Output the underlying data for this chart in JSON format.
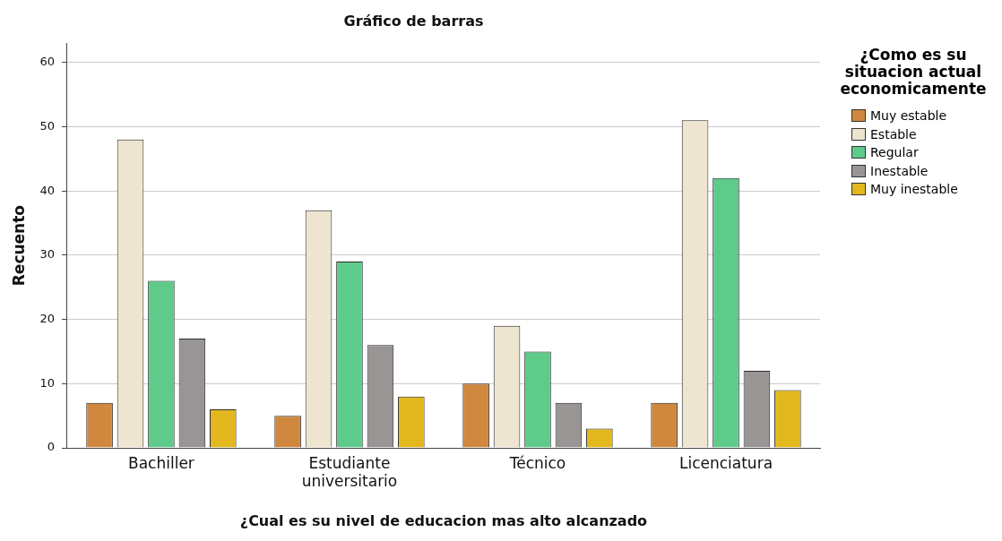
{
  "chart_data": {
    "type": "bar",
    "title": "Gráfico de barras",
    "xlabel": "¿Cual es su nivel de educacion mas alto alcanzado",
    "ylabel": "Recuento",
    "legend_title": "¿Como es su situacion actual economicamente",
    "categories": [
      "Bachiller",
      "Estudiante universitario",
      "Técnico",
      "Licenciatura"
    ],
    "series": [
      {
        "name": "Muy estable",
        "color": "#d0883f",
        "values": [
          7,
          5,
          10,
          7
        ]
      },
      {
        "name": "Estable",
        "color": "#ede5d0",
        "values": [
          48,
          37,
          19,
          51
        ]
      },
      {
        "name": "Regular",
        "color": "#5ecb8b",
        "values": [
          26,
          29,
          15,
          42
        ]
      },
      {
        "name": "Inestable",
        "color": "#999595",
        "values": [
          17,
          16,
          7,
          12
        ]
      },
      {
        "name": "Muy inestable",
        "color": "#e2b81e",
        "values": [
          6,
          8,
          3,
          9
        ]
      }
    ],
    "ylim": [
      0,
      63
    ],
    "yticks": [
      0,
      10,
      20,
      30,
      40,
      50,
      60
    ],
    "grid": "y",
    "legend": "right"
  }
}
